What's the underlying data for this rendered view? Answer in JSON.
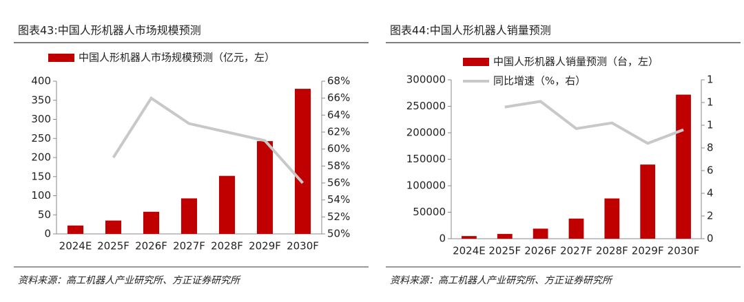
{
  "chart_data": [
    {
      "type": "bar",
      "title": "图表43:中国人形机器人市场规模预测",
      "categories": [
        "2024E",
        "2025F",
        "2026F",
        "2027F",
        "2028F",
        "2029F",
        "2030F"
      ],
      "series": [
        {
          "name": "中国人形机器人市场规模预测（亿元，左）",
          "type": "bar",
          "color": "#c00000",
          "values": [
            22,
            35,
            58,
            93,
            152,
            243,
            380
          ]
        },
        {
          "type": "line",
          "axis": "y2",
          "color": "#c8c8c8",
          "values": [
            null,
            59,
            66,
            63,
            62,
            61,
            56
          ]
        }
      ],
      "ylim": [
        0,
        400
      ],
      "yticks": [
        0,
        50,
        100,
        150,
        200,
        250,
        300,
        350,
        400
      ],
      "y2lim": [
        50,
        68
      ],
      "y2ticks": [
        {
          "value": 50,
          "label": "50%"
        },
        {
          "value": 52,
          "label": "52%"
        },
        {
          "value": 54,
          "label": "54%"
        },
        {
          "value": 56,
          "label": "56%"
        },
        {
          "value": 58,
          "label": "58%"
        },
        {
          "value": 60,
          "label": "60%"
        },
        {
          "value": 62,
          "label": "62%"
        },
        {
          "value": 64,
          "label": "64%"
        },
        {
          "value": 66,
          "label": "66%"
        },
        {
          "value": 68,
          "label": "68%"
        }
      ],
      "source": "资料来源：高工机器人产业研究所、方正证券研究所"
    },
    {
      "type": "bar",
      "title": "图表44:中国人形机器人销量预测",
      "categories": [
        "2024E",
        "2025F",
        "2026F",
        "2027F",
        "2028F",
        "2029F",
        "2030F"
      ],
      "series": [
        {
          "name": "中国人形机器人销量预测（台，左）",
          "type": "bar",
          "color": "#c00000",
          "values": [
            5000,
            9000,
            19000,
            38000,
            76000,
            140000,
            272000
          ]
        },
        {
          "name": "同比增速（%，右）",
          "type": "line",
          "axis": "y2",
          "color": "#c8c8c8",
          "values": [
            null,
            11.6,
            12.1,
            9.7,
            10.2,
            8.4,
            9.6
          ]
        }
      ],
      "ylim": [
        0,
        300000
      ],
      "yticks": [
        0,
        50000,
        100000,
        150000,
        200000,
        250000,
        300000
      ],
      "y2lim": [
        0,
        14
      ],
      "y2ticks": [
        0,
        2,
        4,
        6,
        8,
        {
          "value": 10,
          "label": "1"
        },
        {
          "value": 12,
          "label": "1"
        },
        {
          "value": 14,
          "label": "1"
        }
      ],
      "source": "资料来源：高工机器人产业研究所、方正证券研究所"
    }
  ]
}
